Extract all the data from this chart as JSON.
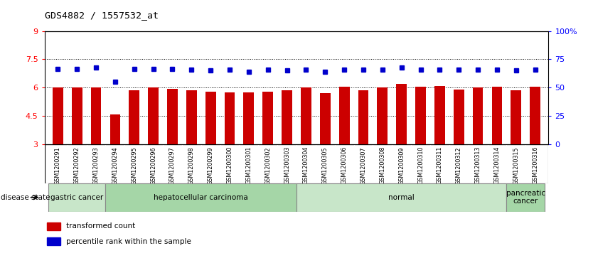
{
  "title": "GDS4882 / 1557532_at",
  "samples": [
    "GSM1200291",
    "GSM1200292",
    "GSM1200293",
    "GSM1200294",
    "GSM1200295",
    "GSM1200296",
    "GSM1200297",
    "GSM1200298",
    "GSM1200299",
    "GSM1200300",
    "GSM1200301",
    "GSM1200302",
    "GSM1200303",
    "GSM1200304",
    "GSM1200305",
    "GSM1200306",
    "GSM1200307",
    "GSM1200308",
    "GSM1200309",
    "GSM1200310",
    "GSM1200311",
    "GSM1200312",
    "GSM1200313",
    "GSM1200314",
    "GSM1200315",
    "GSM1200316"
  ],
  "red_values": [
    6.0,
    6.0,
    6.0,
    4.6,
    5.85,
    6.0,
    5.95,
    5.85,
    5.8,
    5.75,
    5.75,
    5.8,
    5.85,
    6.0,
    5.7,
    6.05,
    5.85,
    6.0,
    6.2,
    6.05,
    6.1,
    5.9,
    6.0,
    6.05,
    5.85,
    6.05
  ],
  "blue_values": [
    7.0,
    7.0,
    7.05,
    6.3,
    7.0,
    7.0,
    7.0,
    6.95,
    6.9,
    6.95,
    6.85,
    6.95,
    6.9,
    6.95,
    6.85,
    6.95,
    6.95,
    6.95,
    7.05,
    6.95,
    6.95,
    6.95,
    6.95,
    6.95,
    6.9,
    6.95
  ],
  "disease_groups": [
    {
      "label": "gastric cancer",
      "start": 0,
      "end": 3,
      "color": "#c8e6c9"
    },
    {
      "label": "hepatocellular carcinoma",
      "start": 3,
      "end": 13,
      "color": "#a5d6a7"
    },
    {
      "label": "normal",
      "start": 13,
      "end": 24,
      "color": "#c8e6c9"
    },
    {
      "label": "pancreatic\ncancer",
      "start": 24,
      "end": 26,
      "color": "#a5d6a7"
    }
  ],
  "ylim_left": [
    3,
    9
  ],
  "ylim_right": [
    0,
    100
  ],
  "yticks_left": [
    3,
    4.5,
    6.0,
    7.5,
    9
  ],
  "ytick_labels_left": [
    "3",
    "4.5",
    "6",
    "7.5",
    "9"
  ],
  "yticks_right": [
    0,
    25,
    50,
    75,
    100
  ],
  "ytick_labels_right": [
    "0",
    "25",
    "50",
    "75",
    "100%"
  ],
  "dotted_lines": [
    4.5,
    6.0,
    7.5
  ],
  "bar_color": "#cc0000",
  "dot_color": "#0000cc",
  "tick_area_color": "#cccccc",
  "legend_red": "transformed count",
  "legend_blue": "percentile rank within the sample",
  "disease_state_label": "disease state"
}
